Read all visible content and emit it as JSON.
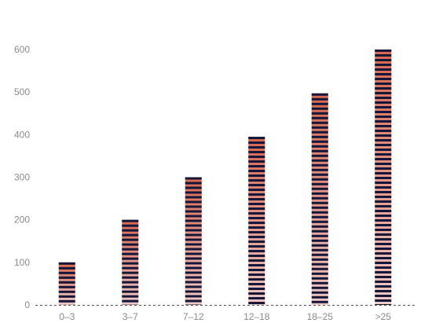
{
  "chart_data": {
    "type": "bar",
    "categories": [
      "0–3",
      "3–7",
      "7–12",
      "12–18",
      "18–25",
      ">25"
    ],
    "values": [
      100,
      200,
      300,
      395,
      497,
      600
    ],
    "ylim": [
      0,
      600
    ],
    "yticks": [
      0,
      100,
      200,
      300,
      400,
      500,
      600
    ],
    "grid": false,
    "baseline_style": "dashed",
    "colors": {
      "bar_top": "#d9674f",
      "bar_bottom": "#f0c9c4",
      "stripe": "#14163a",
      "axis_text": "#8a8a8a",
      "baseline": "#555555"
    }
  }
}
